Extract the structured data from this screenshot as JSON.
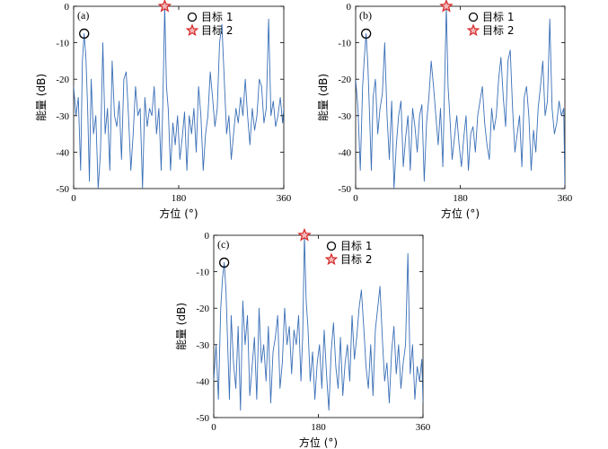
{
  "chart_data": [
    {
      "type": "line",
      "panel_label": "(a)",
      "xlabel": "方位 (°)",
      "ylabel": "能量 (dB)",
      "xlim": [
        0,
        360
      ],
      "ylim": [
        -50,
        0
      ],
      "xticks": [
        "0",
        "180",
        "360"
      ],
      "yticks": [
        "0",
        "-10",
        "-20",
        "-30",
        "-40",
        "-50"
      ],
      "legend": {
        "placement": "top-right",
        "entries": [
          "目标 1",
          "目标 2"
        ]
      },
      "markers": [
        {
          "name": "目标 1",
          "shape": "circle",
          "color": "#000000",
          "x": 18,
          "y": -7.5
        },
        {
          "name": "目标 2",
          "shape": "star",
          "color": "#d62728",
          "x": 156,
          "y": 0
        }
      ],
      "series": [
        {
          "color": "#3a6fb7",
          "x": [
            0,
            4,
            8,
            12,
            15,
            18,
            21,
            24,
            27,
            30,
            34,
            38,
            42,
            46,
            50,
            54,
            58,
            62,
            66,
            70,
            74,
            78,
            82,
            86,
            90,
            94,
            98,
            102,
            106,
            110,
            114,
            118,
            122,
            126,
            130,
            134,
            138,
            142,
            146,
            150,
            153,
            156,
            159,
            162,
            166,
            170,
            174,
            178,
            182,
            186,
            190,
            194,
            198,
            202,
            206,
            210,
            214,
            218,
            222,
            226,
            230,
            234,
            238,
            242,
            246,
            250,
            254,
            258,
            262,
            266,
            270,
            274,
            278,
            282,
            286,
            290,
            294,
            298,
            302,
            306,
            310,
            314,
            318,
            322,
            326,
            330,
            334,
            338,
            342,
            346,
            350,
            354,
            358,
            360
          ],
          "values": [
            -22,
            -30,
            -25,
            -45,
            -15,
            -7.5,
            -14,
            -28,
            -48,
            -20,
            -35,
            -30,
            -50,
            -40,
            -10,
            -35,
            -28,
            -45,
            -15,
            -30,
            -33,
            -26,
            -42,
            -20,
            -18,
            -30,
            -45,
            -35,
            -22,
            -30,
            -28,
            -50,
            -25,
            -33,
            -28,
            -30,
            -22,
            -35,
            -28,
            -45,
            -25,
            0,
            -22,
            -28,
            -45,
            -32,
            -38,
            -30,
            -42,
            -36,
            -29,
            -45,
            -30,
            -35,
            -28,
            -40,
            -22,
            -30,
            -45,
            -35,
            -30,
            -18,
            -25,
            -33,
            -28,
            -10,
            -5,
            -20,
            -35,
            -30,
            -42,
            -35,
            -28,
            -32,
            -25,
            -30,
            -20,
            -30,
            -38,
            -28,
            -34,
            -30,
            -20,
            -22,
            -32,
            -28,
            -3.5,
            -30,
            -26,
            -33,
            -30,
            -25,
            -32,
            -28
          ]
        }
      ]
    },
    {
      "type": "line",
      "panel_label": "(b)",
      "xlabel": "方位 (°)",
      "ylabel": "能量 (dB)",
      "xlim": [
        0,
        360
      ],
      "ylim": [
        -50,
        0
      ],
      "xticks": [
        "0",
        "180",
        "360"
      ],
      "yticks": [
        "0",
        "-10",
        "-20",
        "-30",
        "-40",
        "-50"
      ],
      "legend": {
        "placement": "top-right",
        "entries": [
          "目标 1",
          "目标 2"
        ]
      },
      "markers": [
        {
          "name": "目标 1",
          "shape": "circle",
          "color": "#000000",
          "x": 18,
          "y": -7.5
        },
        {
          "name": "目标 2",
          "shape": "star",
          "color": "#d62728",
          "x": 156,
          "y": 0
        }
      ],
      "series": [
        {
          "color": "#3a6fb7",
          "x": [
            0,
            4,
            8,
            12,
            15,
            18,
            21,
            24,
            27,
            30,
            34,
            38,
            42,
            46,
            50,
            54,
            58,
            62,
            66,
            70,
            74,
            78,
            82,
            86,
            90,
            94,
            98,
            102,
            106,
            110,
            114,
            118,
            122,
            126,
            130,
            134,
            138,
            142,
            146,
            150,
            153,
            156,
            159,
            162,
            166,
            170,
            174,
            178,
            182,
            186,
            190,
            194,
            198,
            202,
            206,
            210,
            214,
            218,
            222,
            226,
            230,
            234,
            238,
            242,
            246,
            250,
            254,
            258,
            262,
            266,
            270,
            274,
            278,
            282,
            286,
            290,
            294,
            298,
            302,
            306,
            310,
            314,
            318,
            322,
            326,
            330,
            334,
            338,
            342,
            346,
            350,
            354,
            358,
            360
          ],
          "values": [
            -20,
            -28,
            -45,
            -22,
            -14,
            -7.5,
            -16,
            -30,
            -45,
            -25,
            -20,
            -35,
            -28,
            -24,
            -10,
            -30,
            -42,
            -26,
            -50,
            -38,
            -30,
            -26,
            -44,
            -36,
            -30,
            -45,
            -28,
            -33,
            -40,
            -30,
            -27,
            -48,
            -32,
            -25,
            -15,
            -22,
            -30,
            -38,
            -28,
            -44,
            -22,
            0,
            -22,
            -30,
            -42,
            -36,
            -30,
            -38,
            -44,
            -36,
            -30,
            -45,
            -35,
            -33,
            -40,
            -30,
            -26,
            -22,
            -32,
            -38,
            -42,
            -28,
            -34,
            -30,
            -20,
            -14,
            -25,
            -33,
            -15,
            -12,
            -28,
            -40,
            -35,
            -30,
            -44,
            -25,
            -22,
            -30,
            -45,
            -34,
            -40,
            -28,
            -22,
            -15,
            -30,
            -26,
            -3.5,
            -28,
            -35,
            -32,
            -26,
            -30,
            -28,
            -50
          ]
        }
      ]
    },
    {
      "type": "line",
      "panel_label": "(c)",
      "xlabel": "方位 (°)",
      "ylabel": "能量 (dB)",
      "xlim": [
        0,
        360
      ],
      "ylim": [
        -50,
        0
      ],
      "xticks": [
        "0",
        "180",
        "360"
      ],
      "yticks": [
        "0",
        "-10",
        "-20",
        "-30",
        "-40",
        "-50"
      ],
      "legend": {
        "placement": "top-right",
        "entries": [
          "目标 1",
          "目标 2"
        ]
      },
      "markers": [
        {
          "name": "目标 1",
          "shape": "circle",
          "color": "#000000",
          "x": 18,
          "y": -7.5
        },
        {
          "name": "目标 2",
          "shape": "star",
          "color": "#d62728",
          "x": 156,
          "y": 0
        }
      ],
      "series": [
        {
          "color": "#3a6fb7",
          "x": [
            0,
            4,
            8,
            12,
            15,
            18,
            21,
            24,
            27,
            30,
            34,
            38,
            42,
            46,
            50,
            54,
            58,
            62,
            66,
            70,
            74,
            78,
            82,
            86,
            90,
            94,
            98,
            102,
            106,
            110,
            114,
            118,
            122,
            126,
            130,
            134,
            138,
            142,
            146,
            150,
            153,
            156,
            159,
            162,
            166,
            170,
            174,
            178,
            182,
            186,
            190,
            194,
            198,
            202,
            206,
            210,
            214,
            218,
            222,
            226,
            230,
            234,
            238,
            242,
            246,
            250,
            254,
            258,
            262,
            266,
            270,
            274,
            278,
            282,
            286,
            290,
            294,
            298,
            302,
            306,
            310,
            314,
            318,
            322,
            326,
            330,
            334,
            338,
            342,
            346,
            350,
            354,
            358,
            360
          ],
          "values": [
            -40,
            -30,
            -45,
            -20,
            -12,
            -7.5,
            -15,
            -30,
            -45,
            -22,
            -35,
            -42,
            -25,
            -48,
            -18,
            -30,
            -22,
            -44,
            -36,
            -28,
            -45,
            -20,
            -35,
            -30,
            -40,
            -25,
            -46,
            -32,
            -28,
            -22,
            -42,
            -35,
            -20,
            -30,
            -25,
            -38,
            -26,
            -30,
            -22,
            -40,
            -28,
            0,
            -18,
            -25,
            -40,
            -32,
            -45,
            -35,
            -30,
            -42,
            -26,
            -38,
            -48,
            -32,
            -24,
            -36,
            -42,
            -28,
            -44,
            -35,
            -30,
            -40,
            -22,
            -34,
            -28,
            -20,
            -15,
            -25,
            -36,
            -42,
            -30,
            -44,
            -26,
            -20,
            -14,
            -28,
            -40,
            -35,
            -46,
            -32,
            -25,
            -38,
            -30,
            -42,
            -35,
            -30,
            -5,
            -38,
            -30,
            -45,
            -36,
            -40,
            -34,
            -46
          ]
        }
      ]
    }
  ]
}
